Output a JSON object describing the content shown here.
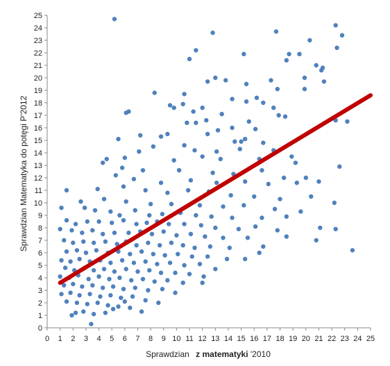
{
  "chart_data": {
    "type": "scatter",
    "title": "",
    "xlabel": "Sprawdzian",
    "xlabel_bold": "z matematyki",
    "xlabel_tail": "'2010",
    "ylabel": "Sprawdzian Matematyka do potęgi P'2012",
    "xlim": [
      0,
      25
    ],
    "ylim": [
      0,
      25
    ],
    "x_ticks": [
      0,
      1,
      2,
      3,
      4,
      5,
      6,
      7,
      8,
      9,
      10,
      11,
      12,
      13,
      14,
      15,
      16,
      17,
      18,
      19,
      20,
      21,
      22,
      23,
      24,
      25
    ],
    "y_ticks": [
      0,
      1,
      2,
      3,
      4,
      5,
      6,
      7,
      8,
      9,
      10,
      11,
      12,
      13,
      14,
      15,
      16,
      17,
      18,
      19,
      20,
      21,
      22,
      23,
      24,
      25
    ],
    "grid": false,
    "legend": "none",
    "colors": {
      "points": "#4f81bd",
      "trendline": "#c00000",
      "axis": "#888888"
    },
    "trendline": {
      "x": [
        1,
        25
      ],
      "y": [
        3.6,
        18.6
      ]
    },
    "series": [
      {
        "points": [
          [
            5.2,
            24.7
          ],
          [
            22.3,
            24.2
          ],
          [
            12.8,
            23.6
          ],
          [
            17.7,
            23.7
          ],
          [
            22.8,
            23.4
          ],
          [
            20.3,
            23.0
          ],
          [
            11.5,
            22.2
          ],
          [
            22.4,
            22.4
          ],
          [
            15.2,
            21.9
          ],
          [
            18.7,
            21.9
          ],
          [
            19.5,
            21.9
          ],
          [
            11.0,
            21.5
          ],
          [
            18.5,
            21.4
          ],
          [
            20.8,
            21.0
          ],
          [
            21.3,
            20.8
          ],
          [
            21.2,
            20.6
          ],
          [
            19.9,
            20.0
          ],
          [
            13.0,
            20.0
          ],
          [
            13.8,
            19.8
          ],
          [
            12.4,
            19.7
          ],
          [
            17.3,
            19.8
          ],
          [
            15.4,
            19.5
          ],
          [
            21.4,
            19.7
          ],
          [
            19.9,
            19.1
          ],
          [
            17.8,
            19.1
          ],
          [
            8.3,
            18.8
          ],
          [
            10.6,
            18.7
          ],
          [
            16.2,
            18.4
          ],
          [
            15.4,
            18.1
          ],
          [
            14.3,
            18.3
          ],
          [
            16.7,
            18.0
          ],
          [
            10.5,
            17.9
          ],
          [
            9.5,
            17.8
          ],
          [
            9.8,
            17.6
          ],
          [
            12.0,
            17.6
          ],
          [
            17.5,
            17.6
          ],
          [
            6.1,
            17.2
          ],
          [
            6.3,
            17.3
          ],
          [
            11.3,
            17.3
          ],
          [
            13.5,
            17.1
          ],
          [
            17.9,
            17.0
          ],
          [
            18.4,
            16.9
          ],
          [
            12.3,
            16.6
          ],
          [
            22.3,
            16.6
          ],
          [
            23.2,
            16.5
          ],
          [
            10.8,
            16.4
          ],
          [
            11.5,
            16.4
          ],
          [
            15.6,
            16.5
          ],
          [
            14.3,
            16.0
          ],
          [
            16.1,
            15.9
          ],
          [
            13.2,
            15.8
          ],
          [
            12.4,
            15.5
          ],
          [
            9.3,
            15.5
          ],
          [
            8.8,
            15.3
          ],
          [
            7.2,
            15.4
          ],
          [
            5.5,
            15.1
          ],
          [
            14.5,
            14.9
          ],
          [
            15.0,
            14.9
          ],
          [
            15.3,
            15.1
          ],
          [
            16.7,
            14.8
          ],
          [
            10.6,
            14.6
          ],
          [
            8.2,
            14.5
          ],
          [
            11.4,
            14.2
          ],
          [
            13.1,
            14.1
          ],
          [
            14.9,
            14.3
          ],
          [
            17.5,
            14.2
          ],
          [
            18.9,
            13.7
          ],
          [
            7.1,
            14.1
          ],
          [
            4.6,
            13.5
          ],
          [
            6.0,
            13.6
          ],
          [
            9.8,
            13.4
          ],
          [
            12.0,
            13.7
          ],
          [
            13.4,
            13.5
          ],
          [
            16.4,
            13.5
          ],
          [
            19.2,
            13.2
          ],
          [
            4.3,
            13.2
          ],
          [
            5.8,
            12.8
          ],
          [
            7.4,
            12.6
          ],
          [
            10.2,
            12.6
          ],
          [
            12.8,
            12.4
          ],
          [
            14.4,
            12.3
          ],
          [
            16.6,
            12.6
          ],
          [
            18.3,
            12.0
          ],
          [
            20.0,
            12.0
          ],
          [
            22.6,
            12.9
          ],
          [
            5.3,
            12.2
          ],
          [
            6.7,
            11.9
          ],
          [
            8.8,
            11.6
          ],
          [
            11.1,
            11.8
          ],
          [
            13.1,
            11.6
          ],
          [
            15.3,
            11.7
          ],
          [
            17.1,
            11.5
          ],
          [
            19.3,
            11.6
          ],
          [
            21.0,
            11.7
          ],
          [
            1.5,
            11.0
          ],
          [
            3.9,
            11.1
          ],
          [
            5.9,
            11.3
          ],
          [
            7.6,
            11.0
          ],
          [
            9.3,
            10.8
          ],
          [
            10.9,
            11.0
          ],
          [
            12.5,
            10.9
          ],
          [
            14.2,
            10.6
          ],
          [
            16.0,
            10.5
          ],
          [
            18.0,
            10.3
          ],
          [
            20.4,
            10.5
          ],
          [
            22.2,
            10.0
          ],
          [
            2.6,
            10.1
          ],
          [
            4.4,
            10.3
          ],
          [
            6.1,
            10.1
          ],
          [
            8.0,
            9.9
          ],
          [
            9.6,
            9.9
          ],
          [
            11.8,
            9.8
          ],
          [
            13.6,
            9.7
          ],
          [
            15.2,
            9.8
          ],
          [
            17.6,
            9.5
          ],
          [
            19.6,
            9.3
          ],
          [
            1.1,
            9.6
          ],
          [
            2.9,
            9.6
          ],
          [
            3.7,
            9.4
          ],
          [
            4.9,
            9.3
          ],
          [
            5.6,
            9.0
          ],
          [
            6.8,
            9.4
          ],
          [
            7.9,
            9.0
          ],
          [
            8.9,
            9.1
          ],
          [
            10.3,
            9.2
          ],
          [
            11.5,
            9.0
          ],
          [
            12.7,
            8.9
          ],
          [
            14.3,
            8.8
          ],
          [
            16.6,
            8.8
          ],
          [
            18.5,
            8.9
          ],
          [
            21.1,
            8.0
          ],
          [
            22.3,
            7.9
          ],
          [
            1.5,
            8.6
          ],
          [
            2.2,
            8.3
          ],
          [
            3.1,
            8.5
          ],
          [
            4.0,
            8.5
          ],
          [
            5.0,
            8.4
          ],
          [
            5.9,
            8.6
          ],
          [
            6.9,
            8.3
          ],
          [
            7.7,
            8.4
          ],
          [
            8.5,
            8.5
          ],
          [
            9.4,
            8.3
          ],
          [
            10.6,
            8.3
          ],
          [
            11.9,
            8.2
          ],
          [
            13.0,
            8.0
          ],
          [
            14.8,
            7.9
          ],
          [
            16.1,
            8.1
          ],
          [
            17.8,
            7.8
          ],
          [
            1.0,
            7.9
          ],
          [
            1.9,
            7.8
          ],
          [
            2.7,
            7.6
          ],
          [
            3.5,
            7.8
          ],
          [
            4.3,
            7.5
          ],
          [
            5.2,
            7.6
          ],
          [
            6.3,
            7.6
          ],
          [
            7.2,
            7.7
          ],
          [
            8.1,
            7.5
          ],
          [
            9.0,
            7.7
          ],
          [
            10.0,
            7.4
          ],
          [
            11.1,
            7.5
          ],
          [
            12.2,
            7.3
          ],
          [
            13.6,
            7.2
          ],
          [
            15.5,
            7.2
          ],
          [
            18.5,
            7.3
          ],
          [
            20.8,
            7.0
          ],
          [
            23.6,
            6.2
          ],
          [
            1.3,
            7.0
          ],
          [
            2.0,
            6.8
          ],
          [
            2.8,
            6.9
          ],
          [
            3.6,
            6.8
          ],
          [
            4.5,
            6.9
          ],
          [
            5.4,
            6.7
          ],
          [
            6.1,
            6.9
          ],
          [
            6.9,
            6.6
          ],
          [
            7.8,
            6.8
          ],
          [
            8.7,
            6.6
          ],
          [
            9.6,
            6.8
          ],
          [
            10.5,
            6.6
          ],
          [
            11.4,
            6.4
          ],
          [
            12.6,
            6.5
          ],
          [
            14.1,
            6.4
          ],
          [
            16.7,
            6.5
          ],
          [
            1.5,
            6.1
          ],
          [
            2.3,
            6.2
          ],
          [
            3.0,
            6.0
          ],
          [
            3.8,
            6.2
          ],
          [
            4.7,
            6.0
          ],
          [
            5.5,
            6.1
          ],
          [
            6.4,
            5.9
          ],
          [
            7.3,
            6.1
          ],
          [
            8.2,
            5.9
          ],
          [
            9.1,
            5.8
          ],
          [
            10.1,
            5.9
          ],
          [
            11.2,
            5.7
          ],
          [
            12.4,
            5.7
          ],
          [
            13.9,
            5.5
          ],
          [
            15.3,
            5.5
          ],
          [
            16.4,
            6.0
          ],
          [
            1.1,
            5.4
          ],
          [
            1.8,
            5.3
          ],
          [
            2.5,
            5.5
          ],
          [
            3.3,
            5.3
          ],
          [
            4.1,
            5.4
          ],
          [
            4.9,
            5.2
          ],
          [
            5.8,
            5.4
          ],
          [
            6.7,
            5.2
          ],
          [
            7.6,
            5.3
          ],
          [
            8.5,
            5.1
          ],
          [
            9.5,
            5.2
          ],
          [
            10.6,
            5.0
          ],
          [
            11.8,
            5.1
          ],
          [
            13.0,
            4.7
          ],
          [
            1.4,
            4.8
          ],
          [
            2.1,
            4.6
          ],
          [
            2.9,
            4.8
          ],
          [
            3.6,
            4.6
          ],
          [
            4.4,
            4.7
          ],
          [
            5.2,
            4.5
          ],
          [
            6.1,
            4.7
          ],
          [
            7.0,
            4.5
          ],
          [
            7.9,
            4.6
          ],
          [
            8.8,
            4.4
          ],
          [
            9.9,
            4.4
          ],
          [
            11.0,
            4.3
          ],
          [
            12.1,
            4.1
          ],
          [
            1.0,
            4.1
          ],
          [
            1.7,
            4.0
          ],
          [
            2.4,
            4.2
          ],
          [
            3.2,
            3.9
          ],
          [
            4.0,
            4.1
          ],
          [
            4.8,
            3.9
          ],
          [
            5.6,
            4.0
          ],
          [
            6.5,
            3.8
          ],
          [
            7.4,
            3.9
          ],
          [
            8.3,
            3.7
          ],
          [
            9.3,
            3.8
          ],
          [
            10.5,
            3.6
          ],
          [
            12.0,
            3.6
          ],
          [
            1.3,
            3.4
          ],
          [
            2.0,
            3.5
          ],
          [
            2.7,
            3.3
          ],
          [
            3.5,
            3.4
          ],
          [
            4.3,
            3.2
          ],
          [
            5.1,
            3.3
          ],
          [
            5.9,
            3.1
          ],
          [
            6.8,
            3.2
          ],
          [
            7.8,
            3.0
          ],
          [
            8.9,
            3.1
          ],
          [
            9.9,
            2.8
          ],
          [
            1.1,
            2.7
          ],
          [
            1.8,
            2.8
          ],
          [
            2.5,
            2.6
          ],
          [
            3.3,
            2.7
          ],
          [
            4.1,
            2.5
          ],
          [
            4.9,
            2.6
          ],
          [
            5.7,
            2.4
          ],
          [
            6.6,
            2.5
          ],
          [
            7.6,
            2.2
          ],
          [
            8.6,
            2.0
          ],
          [
            1.5,
            2.1
          ],
          [
            2.3,
            2.0
          ],
          [
            3.1,
            1.9
          ],
          [
            3.9,
            2.0
          ],
          [
            4.7,
            1.8
          ],
          [
            5.5,
            1.7
          ],
          [
            6.4,
            1.6
          ],
          [
            7.3,
            1.3
          ],
          [
            1.9,
            1.0
          ],
          [
            2.8,
            1.3
          ],
          [
            3.6,
            1.1
          ],
          [
            4.5,
            1.2
          ],
          [
            3.4,
            0.3
          ],
          [
            5.1,
            1.5
          ],
          [
            2.2,
            1.2
          ],
          [
            6.0,
            2.1
          ]
        ]
      }
    ]
  }
}
